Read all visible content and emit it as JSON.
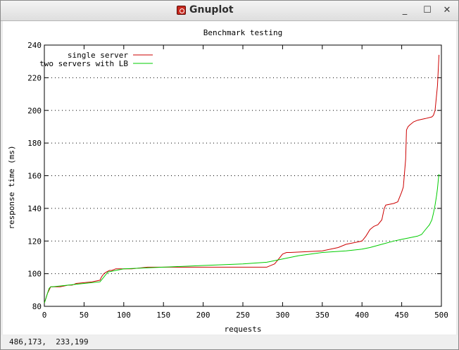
{
  "window": {
    "title": "Gnuplot",
    "minimize_glyph": "_",
    "maximize_glyph": "☐",
    "close_glyph": "✕",
    "icon": "gnuplot-app-icon"
  },
  "status": {
    "coordinates": "486,173,  233,199"
  },
  "colors": {
    "single_server": "#cc0000",
    "two_servers": "#00cc00"
  },
  "chart_data": {
    "type": "line",
    "title": "Benchmark testing",
    "xlabel": "requests",
    "ylabel": "response time (ms)",
    "xlim": [
      0,
      500
    ],
    "ylim": [
      80,
      240
    ],
    "xticks": [
      "0",
      "50",
      "100",
      "150",
      "200",
      "250",
      "300",
      "350",
      "400",
      "450",
      "500"
    ],
    "yticks": [
      "80",
      "100",
      "120",
      "140",
      "160",
      "180",
      "200",
      "220",
      "240"
    ],
    "grid": true,
    "legend_position": "top-left",
    "series": [
      {
        "name": "single server",
        "color": "#cc0000",
        "x": [
          0,
          2,
          4,
          6,
          8,
          12,
          20,
          30,
          35,
          40,
          60,
          70,
          72,
          75,
          78,
          82,
          85,
          90,
          100,
          110,
          130,
          140,
          200,
          250,
          280,
          290,
          295,
          300,
          305,
          310,
          350,
          370,
          380,
          390,
          400,
          405,
          410,
          415,
          420,
          425,
          428,
          430,
          440,
          445,
          450,
          452,
          455,
          456,
          458,
          460,
          465,
          470,
          480,
          488,
          490,
          492,
          495,
          497
        ],
        "y": [
          82,
          85,
          88,
          90,
          92,
          92,
          92,
          93,
          93,
          94,
          95,
          96,
          98,
          100,
          101,
          102,
          102,
          103,
          103,
          103,
          104,
          104,
          104,
          104,
          104,
          106,
          109,
          112,
          113,
          113,
          114,
          116,
          118,
          119,
          120,
          123,
          127,
          129,
          130,
          133,
          140,
          142,
          143,
          144,
          150,
          153,
          170,
          188,
          190,
          191,
          193,
          194,
          195,
          196,
          197,
          200,
          215,
          234
        ]
      },
      {
        "name": "two servers with LB",
        "color": "#00cc00",
        "x": [
          0,
          2,
          4,
          6,
          8,
          10,
          30,
          50,
          70,
          75,
          80,
          90,
          100,
          150,
          200,
          250,
          280,
          300,
          320,
          350,
          380,
          400,
          410,
          425,
          440,
          450,
          460,
          470,
          475,
          480,
          485,
          488,
          490,
          492,
          494,
          495,
          496,
          497
        ],
        "y": [
          82,
          85,
          88,
          91,
          92,
          92,
          93,
          94,
          95,
          98,
          101,
          102,
          103,
          104,
          105,
          106,
          107,
          109,
          111,
          113,
          114,
          115,
          116,
          118,
          120,
          121,
          122,
          123,
          124,
          127,
          130,
          133,
          137,
          142,
          148,
          152,
          157,
          161
        ]
      }
    ]
  }
}
